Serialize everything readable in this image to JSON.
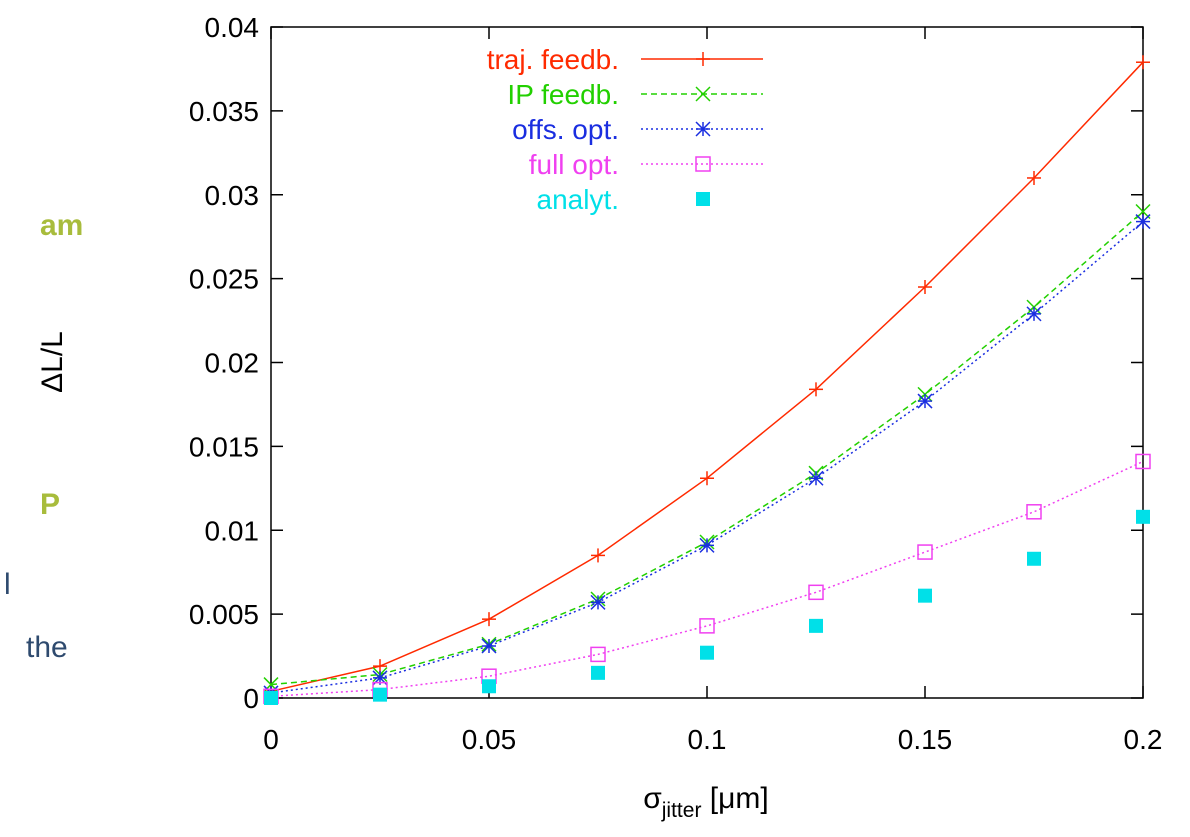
{
  "slide_fragments": [
    {
      "text": "am",
      "color": "#a8bc3c",
      "bold": true
    },
    {
      "text": "P",
      "color": "#a8bc3c",
      "bold": true
    },
    {
      "text": "l",
      "color": "#2e4a6e",
      "bold": false
    },
    {
      "text": "the",
      "color": "#2e4a6e",
      "bold": false
    }
  ],
  "chart_data": {
    "type": "line",
    "title": "",
    "xlabel_main": "σ",
    "xlabel_sub": "jitter",
    "xlabel_unit": " [μm]",
    "ylabel": "ΔL/L",
    "xlim": [
      0,
      0.2
    ],
    "ylim": [
      0,
      0.04
    ],
    "xticks": [
      "0",
      "0.05",
      "0.1",
      "0.15",
      "0.2"
    ],
    "yticks": [
      "0",
      "0.005",
      "0.01",
      "0.015",
      "0.02",
      "0.025",
      "0.03",
      "0.035",
      "0.04"
    ],
    "grid": false,
    "legend_position": "top-left",
    "x": [
      0,
      0.025,
      0.05,
      0.075,
      0.1,
      0.125,
      0.15,
      0.175,
      0.2
    ],
    "series": [
      {
        "name": "traj. feedb.",
        "color": "#ff2a00",
        "marker": "plus",
        "line": "solid",
        "values": [
          0.0004,
          0.0019,
          0.0047,
          0.0085,
          0.0131,
          0.0184,
          0.0245,
          0.031,
          0.0379
        ]
      },
      {
        "name": "IP feedb.",
        "color": "#22d000",
        "marker": "cross",
        "line": "dashed",
        "values": [
          0.0008,
          0.0014,
          0.0032,
          0.0059,
          0.0093,
          0.0134,
          0.0181,
          0.0233,
          0.029
        ]
      },
      {
        "name": "offs. opt.",
        "color": "#1a2ee0",
        "marker": "asterisk",
        "line": "dotted",
        "values": [
          0.0003,
          0.0012,
          0.0031,
          0.0057,
          0.0091,
          0.0131,
          0.0177,
          0.0229,
          0.0284
        ]
      },
      {
        "name": "full opt.",
        "color": "#f040f0",
        "marker": "open-square",
        "line": "dotted",
        "values": [
          0.0001,
          0.0005,
          0.0013,
          0.0026,
          0.0043,
          0.0063,
          0.0087,
          0.0111,
          0.0141
        ]
      },
      {
        "name": "analyt.",
        "color": "#00e0e8",
        "marker": "filled-square",
        "line": "none",
        "values": [
          0.0,
          0.0002,
          0.0007,
          0.0015,
          0.0027,
          0.0043,
          0.0061,
          0.0083,
          0.0108
        ]
      }
    ]
  }
}
